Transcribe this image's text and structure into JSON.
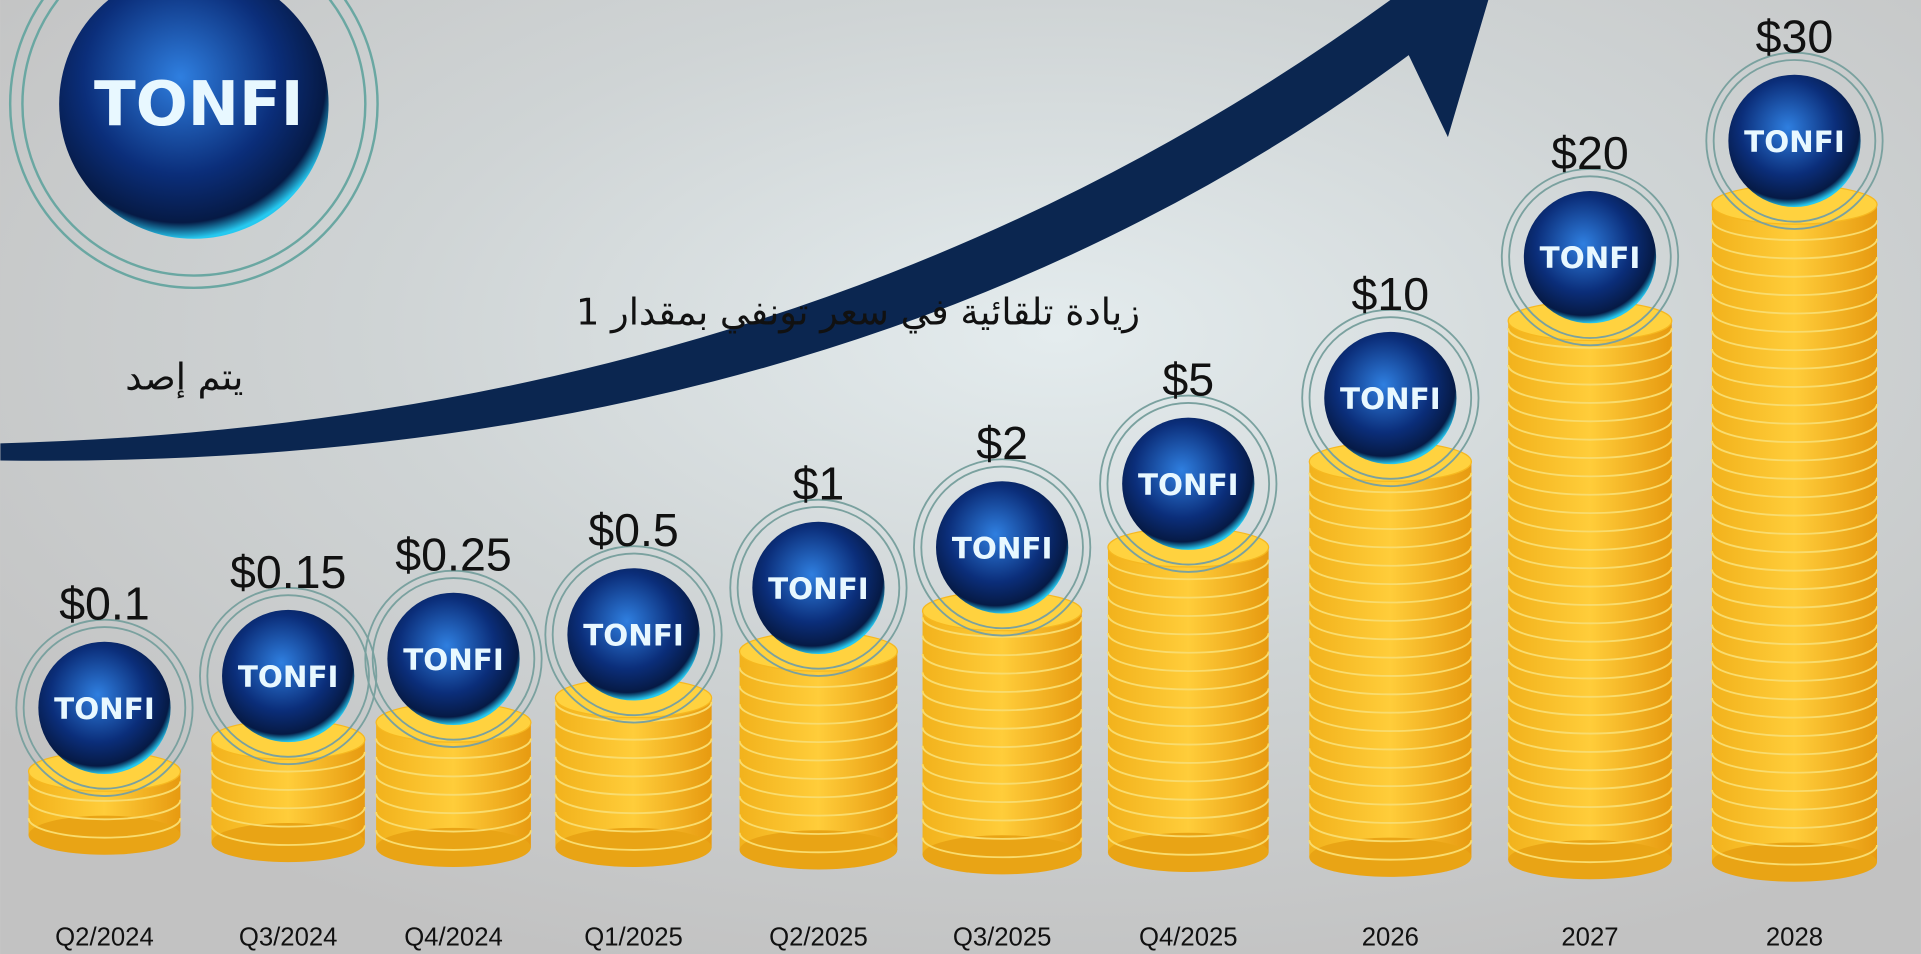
{
  "logo_text": "TONFI",
  "headline": {
    "line1": "زيادة تلقائية في سعر تونفي بمقدار 1",
    "line2": "يتم إصد"
  },
  "roadmap": [
    {
      "period": "Q2/2024",
      "price": "$0.1"
    },
    {
      "period": "Q3/2024",
      "price": "$0.15"
    },
    {
      "period": "Q4/2024",
      "price": "$0.25"
    },
    {
      "period": "Q1/2025",
      "price": "$0.5"
    },
    {
      "period": "Q2/2025",
      "price": "$1"
    },
    {
      "period": "Q3/2025",
      "price": "$2"
    },
    {
      "period": "Q4/2025",
      "price": "$5"
    },
    {
      "period": "2026",
      "price": "$10"
    },
    {
      "period": "2027",
      "price": "$20"
    },
    {
      "period": "2028",
      "price": "$30"
    }
  ]
}
